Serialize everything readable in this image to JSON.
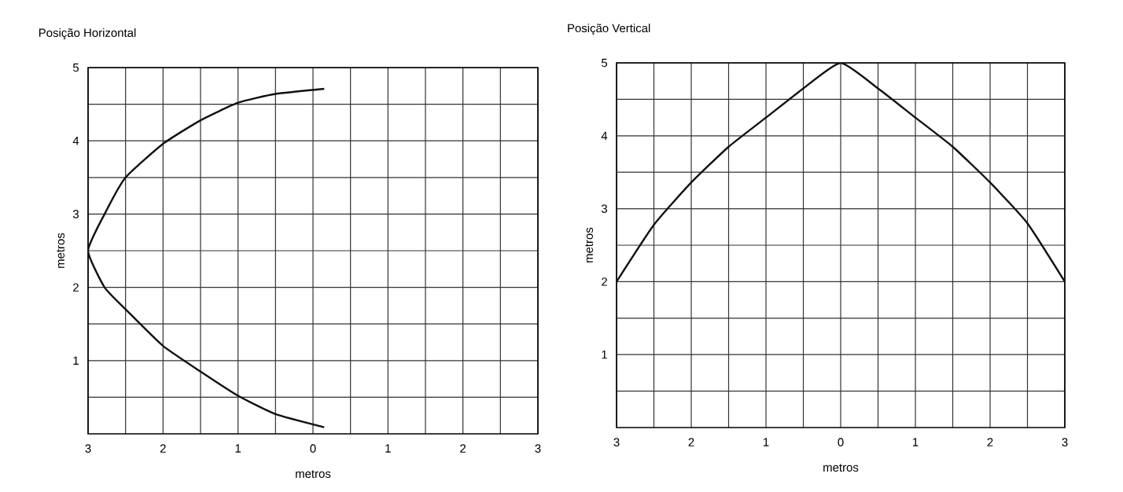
{
  "chart_data": [
    {
      "type": "line",
      "title": "Posição Horizontal",
      "xlabel": "metros",
      "ylabel": "metros",
      "color": "#111111",
      "marker": "none",
      "line_style": "solid",
      "grid": true,
      "x": [
        0.15,
        -0.5,
        -1,
        -1.5,
        -2,
        -2.5,
        -2.78,
        -3,
        -2.78,
        -2.5,
        -2,
        -1.5,
        -1,
        -0.5,
        0.15
      ],
      "values": [
        4.71,
        4.64,
        4.52,
        4.28,
        3.96,
        3.5,
        3.0,
        2.5,
        2.0,
        1.7,
        1.2,
        0.85,
        0.52,
        0.27,
        0.09
      ],
      "xlim": [
        -3,
        3
      ],
      "ylim": [
        0,
        5
      ],
      "xticks": [
        {
          "value": -3,
          "label": "3"
        },
        {
          "value": -2.5,
          "label": null
        },
        {
          "value": -2,
          "label": "2"
        },
        {
          "value": -1.5,
          "label": null
        },
        {
          "value": -1,
          "label": "1"
        },
        {
          "value": -0.5,
          "label": null
        },
        {
          "value": 0,
          "label": "0"
        },
        {
          "value": 0.5,
          "label": null
        },
        {
          "value": 1,
          "label": "1"
        },
        {
          "value": 1.5,
          "label": null
        },
        {
          "value": 2,
          "label": "2"
        },
        {
          "value": 2.5,
          "label": null
        },
        {
          "value": 3,
          "label": "3"
        }
      ],
      "yticks": [
        {
          "value": 0.5,
          "label": null
        },
        1,
        {
          "value": 1.5,
          "label": null
        },
        2,
        {
          "value": 2.5,
          "label": null
        },
        3,
        {
          "value": 3.5,
          "label": null
        },
        4,
        {
          "value": 4.5,
          "label": null
        },
        5
      ]
    },
    {
      "type": "line",
      "title": "Posição Vertical",
      "xlabel": "metros",
      "ylabel": "metros",
      "color": "#111111",
      "marker": "none",
      "line_style": "solid",
      "grid": true,
      "x": [
        -3,
        -2.5,
        -2,
        -1.5,
        -1,
        -0.5,
        0,
        0.5,
        1,
        1.5,
        2,
        2.5,
        3
      ],
      "values": [
        2,
        2.78,
        3.36,
        3.85,
        4.25,
        4.65,
        5,
        4.65,
        4.25,
        3.85,
        3.36,
        2.8,
        2
      ],
      "xlim": [
        -3,
        3
      ],
      "ylim": [
        0,
        5
      ],
      "xticks": [
        {
          "value": -3,
          "label": "3"
        },
        {
          "value": -2.5,
          "label": null
        },
        {
          "value": -2,
          "label": "2"
        },
        {
          "value": -1.5,
          "label": null
        },
        {
          "value": -1,
          "label": "1"
        },
        {
          "value": -0.5,
          "label": null
        },
        {
          "value": 0,
          "label": "0"
        },
        {
          "value": 0.5,
          "label": null
        },
        {
          "value": 1,
          "label": "1"
        },
        {
          "value": 1.5,
          "label": null
        },
        {
          "value": 2,
          "label": "2"
        },
        {
          "value": 2.5,
          "label": null
        },
        {
          "value": 3,
          "label": "3"
        }
      ],
      "yticks": [
        {
          "value": 0.5,
          "label": null
        },
        1,
        {
          "value": 1.5,
          "label": null
        },
        2,
        {
          "value": 2.5,
          "label": null
        },
        3,
        {
          "value": 3.5,
          "label": null
        },
        4,
        {
          "value": 4.5,
          "label": null
        },
        5
      ]
    }
  ]
}
